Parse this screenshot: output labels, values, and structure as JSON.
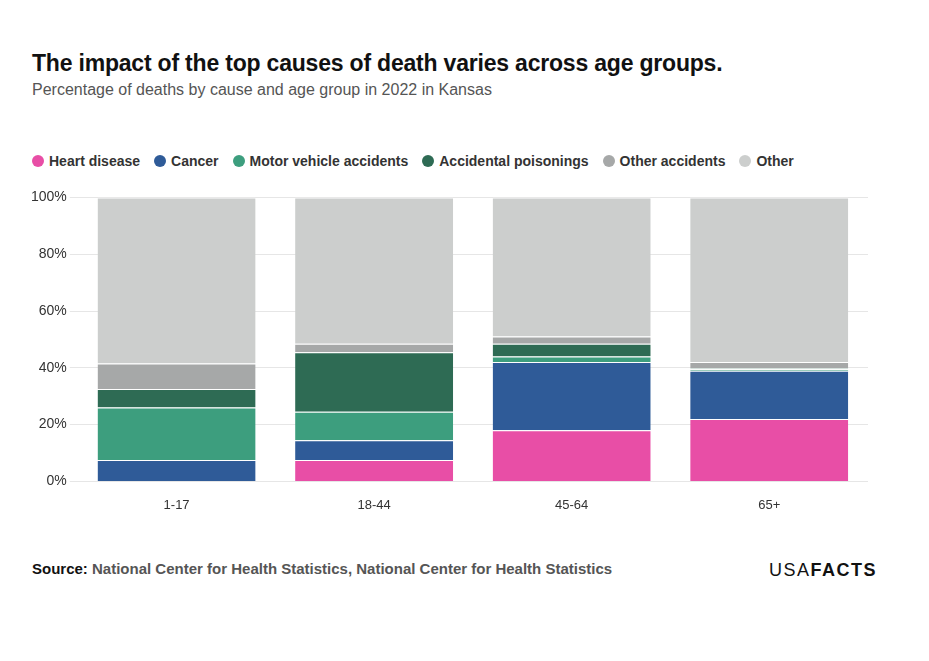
{
  "chart_data": {
    "type": "bar",
    "title": "The impact of the top causes of death varies across age groups.",
    "subtitle": "Percentage of deaths by cause and age group in 2022 in Kansas",
    "source_label": "Source:",
    "source": "National Center for Health Statistics, National Center for Health Statistics",
    "logo": [
      "USA",
      "FACTS"
    ],
    "categories": [
      "1-17",
      "18-44",
      "45-64",
      "65+"
    ],
    "series": [
      {
        "name": "Heart disease",
        "color": "#e84ea6",
        "values": [
          0,
          7.5,
          18,
          22
        ]
      },
      {
        "name": "Cancer",
        "color": "#2f5b98",
        "values": [
          7.5,
          7,
          24,
          17
        ]
      },
      {
        "name": "Motor vehicle accidents",
        "color": "#3d9e7e",
        "values": [
          18.5,
          10,
          2,
          0.5
        ]
      },
      {
        "name": "Accidental poisonings",
        "color": "#2e6b54",
        "values": [
          6.5,
          21,
          4.5,
          0.3
        ]
      },
      {
        "name": "Other accidents",
        "color": "#a6a8a8",
        "values": [
          9,
          3,
          2.5,
          2.2
        ]
      },
      {
        "name": "Other",
        "color": "#cccecd",
        "values": [
          58.5,
          51.5,
          49,
          58
        ]
      }
    ],
    "stacked": true,
    "ylim": [
      0,
      100
    ],
    "yticks": [
      {
        "value": 0,
        "label": "0%"
      },
      {
        "value": 20,
        "label": "20%"
      },
      {
        "value": 40,
        "label": "40%"
      },
      {
        "value": 60,
        "label": "60%"
      },
      {
        "value": 80,
        "label": "80%"
      },
      {
        "value": 100,
        "label": "100%"
      }
    ],
    "grid": true,
    "legend": "top",
    "data_labels": false
  }
}
